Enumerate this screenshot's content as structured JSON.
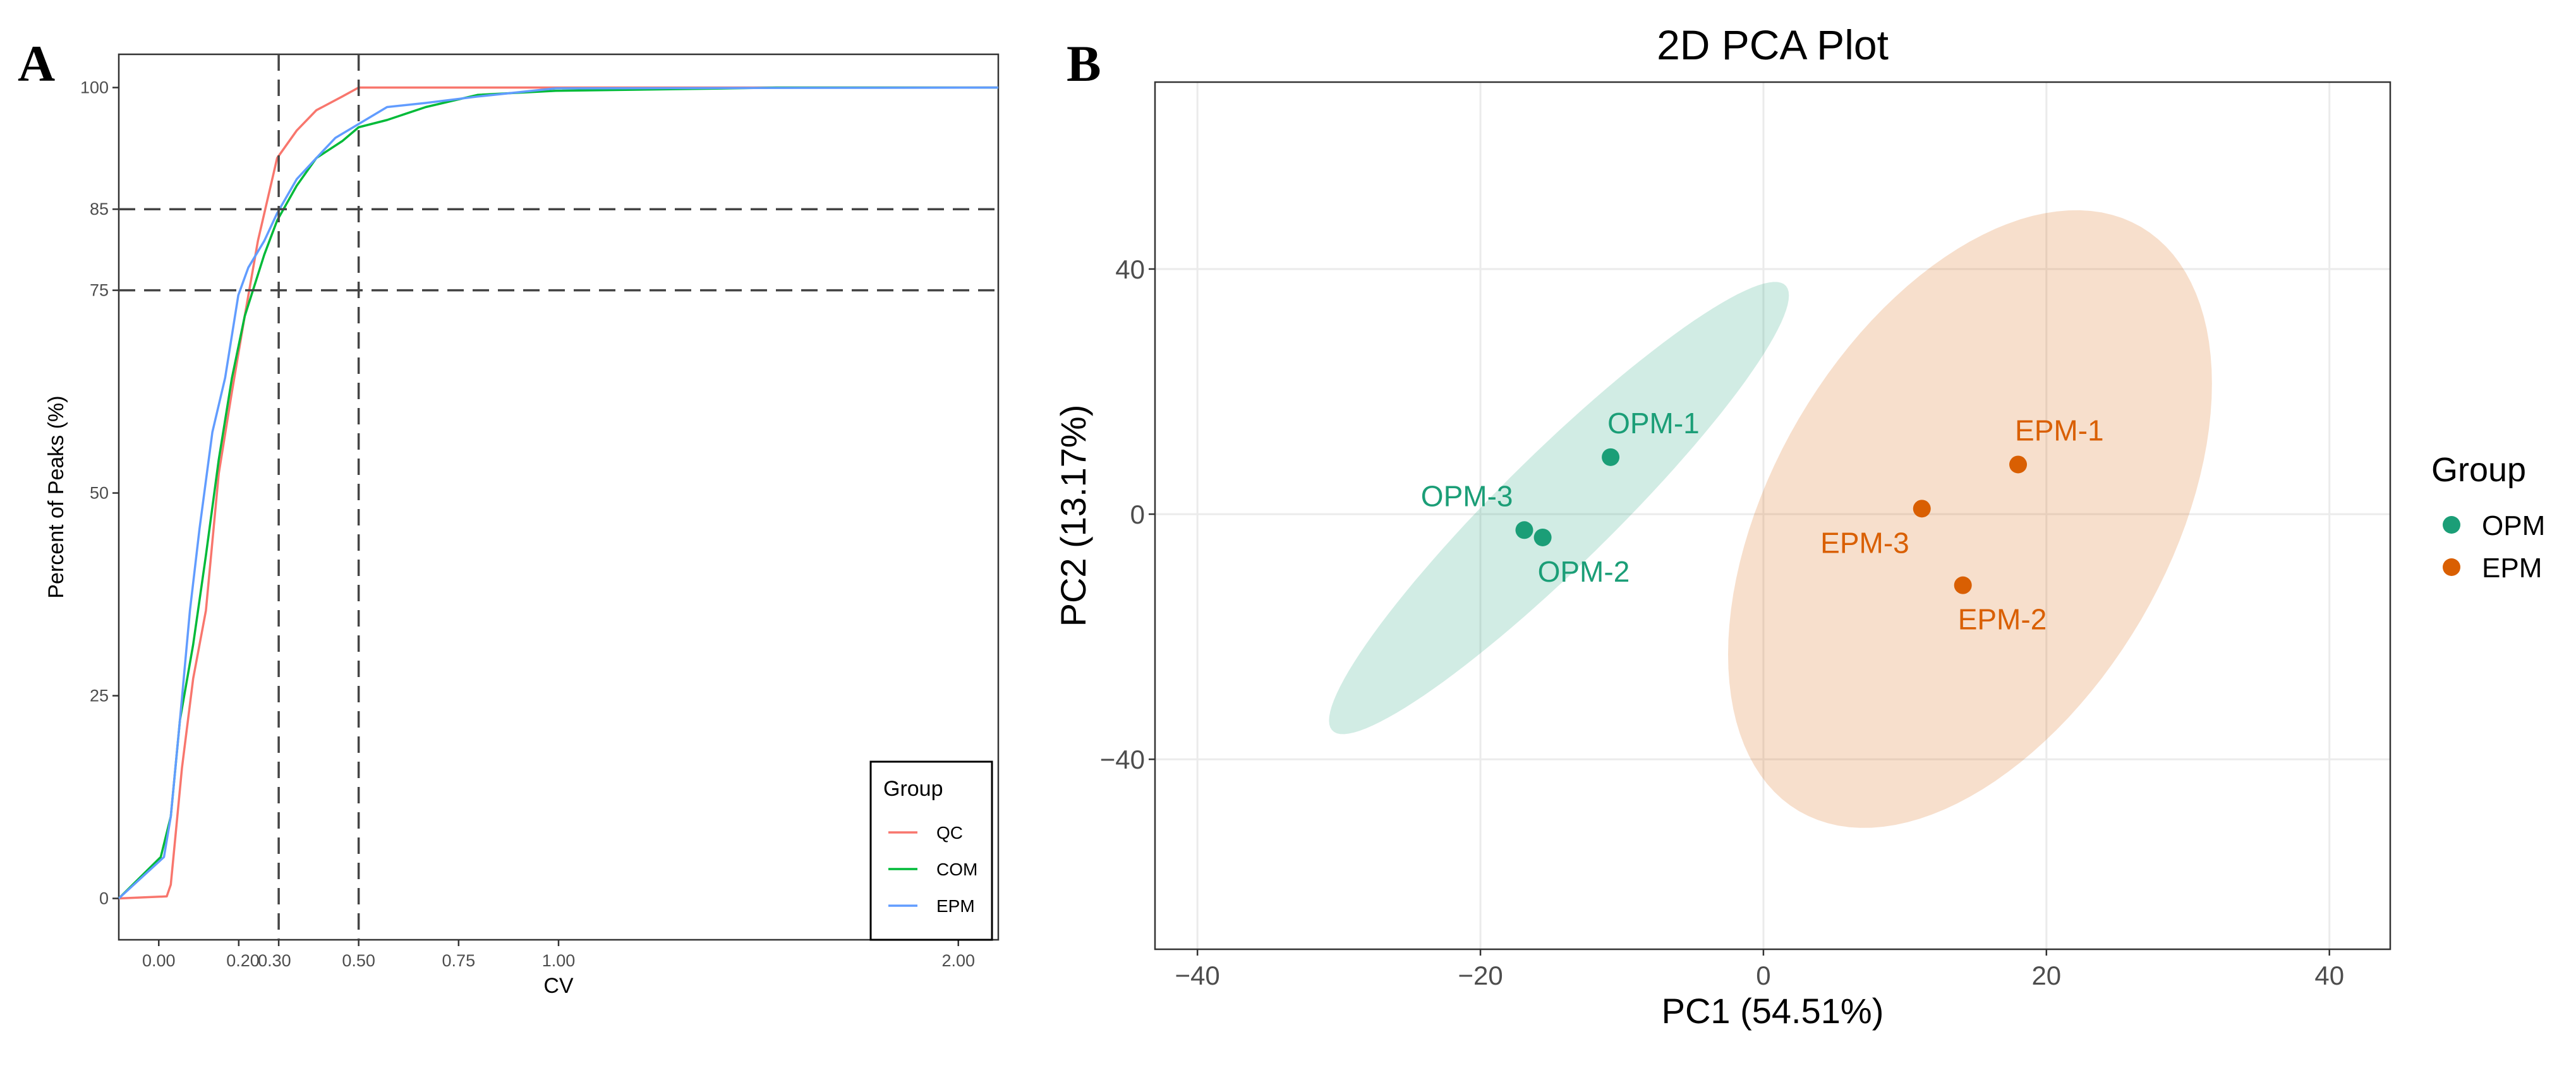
{
  "chart_data": [
    {
      "type": "line",
      "panel_label": "A",
      "xlabel": "CV",
      "ylabel": "Percent of Peaks (%)",
      "xlim": [
        -0.1,
        2.1
      ],
      "ylim": [
        -5.1,
        104.1
      ],
      "xticks": [
        0,
        0.2,
        0.3,
        0.5,
        0.75,
        1.0,
        2.0
      ],
      "xtick_labels": [
        "0.00",
        "0.20",
        "0.30",
        "0.50",
        "0.75",
        "1.00",
        "2.00"
      ],
      "yticks": [
        0,
        25,
        50,
        75,
        85,
        100
      ],
      "ytick_labels": [
        "0",
        "25",
        "50",
        "75",
        "85",
        "100"
      ],
      "reference_lines": {
        "vertical": [
          0.3,
          0.5
        ],
        "horizontal": [
          75,
          85
        ]
      },
      "grid": false,
      "legend": {
        "title": "Group",
        "placement": "bottom-right"
      },
      "series": [
        {
          "name": "QC",
          "color": "#F8766D",
          "x": [
            -0.1,
            0.02,
            0.03,
            0.04,
            0.058,
            0.086,
            0.118,
            0.15,
            0.183,
            0.215,
            0.248,
            0.272,
            0.296,
            0.345,
            0.394,
            0.459,
            0.5,
            2.1
          ],
          "y": [
            0,
            0.25,
            1.7,
            6.8,
            16.1,
            27.1,
            35.5,
            52.4,
            62.5,
            71.8,
            81.1,
            86.2,
            91.3,
            94.7,
            97.2,
            98.9,
            100,
            100
          ]
        },
        {
          "name": "COM",
          "color": "#00BA38",
          "x": [
            -0.1,
            0.005,
            0.03,
            0.053,
            0.086,
            0.118,
            0.15,
            0.183,
            0.215,
            0.264,
            0.296,
            0.345,
            0.394,
            0.459,
            0.5,
            0.571,
            0.668,
            0.798,
            0.993,
            1.43,
            1.545,
            2.1
          ],
          "y": [
            0,
            5.1,
            10.1,
            22,
            31.3,
            42.3,
            54.1,
            64.2,
            71.8,
            79.4,
            83.6,
            87.9,
            91.3,
            93.4,
            95.1,
            96,
            97.6,
            99.1,
            99.6,
            99.9,
            100,
            100
          ]
        },
        {
          "name": "EPM",
          "color": "#619CFF",
          "x": [
            -0.1,
            0.013,
            0.03,
            0.053,
            0.078,
            0.102,
            0.134,
            0.166,
            0.199,
            0.224,
            0.264,
            0.296,
            0.345,
            0.394,
            0.442,
            0.5,
            0.571,
            0.668,
            0.798,
            0.993,
            2.1
          ],
          "y": [
            0,
            5.1,
            10.1,
            22,
            35.5,
            45.6,
            57.5,
            64.2,
            74.4,
            77.8,
            81.1,
            84.5,
            88.7,
            91.3,
            93.8,
            95.5,
            97.6,
            98.1,
            98.9,
            99.9,
            100
          ]
        }
      ]
    },
    {
      "type": "scatter",
      "panel_label": "B",
      "title": "2D PCA Plot",
      "xlabel": "PC1 (54.51%)",
      "ylabel": "PC2 (13.17%)",
      "xlim": [
        -43,
        44.3
      ],
      "ylim": [
        -71,
        70.5
      ],
      "xticks": [
        -40,
        -20,
        0,
        20,
        40
      ],
      "xtick_labels": [
        "−40",
        "−20",
        "0",
        "20",
        "40"
      ],
      "yticks": [
        -40,
        0,
        40
      ],
      "ytick_labels": [
        "−40",
        "0",
        "40"
      ],
      "grid": true,
      "legend": {
        "title": "Group",
        "placement": "right"
      },
      "groups": [
        {
          "name": "OPM",
          "color": "#1B9E77",
          "ellipse": {
            "cx": -14.45,
            "cy": 1.0,
            "rx": 16.25,
            "ry": 36.9,
            "phase_deg": 20
          },
          "points": [
            {
              "label": "OPM-1",
              "x": -10.8,
              "y": 9.3,
              "label_pos": "above-right"
            },
            {
              "label": "OPM-2",
              "x": -15.6,
              "y": -3.8,
              "label_pos": "below-right"
            },
            {
              "label": "OPM-3",
              "x": -16.9,
              "y": -2.6,
              "label_pos": "above-left"
            }
          ]
        },
        {
          "name": "EPM",
          "color": "#D95F02",
          "ellipse": {
            "cx": 14.6,
            "cy": -0.8,
            "rx": 17.1,
            "ry": 50.4,
            "phase_deg": 64
          },
          "points": [
            {
              "label": "EPM-1",
              "x": 18.0,
              "y": 8.1,
              "label_pos": "above-right"
            },
            {
              "label": "EPM-2",
              "x": 14.1,
              "y": -11.6,
              "label_pos": "below-right"
            },
            {
              "label": "EPM-3",
              "x": 11.2,
              "y": 0.9,
              "label_pos": "below-left"
            }
          ]
        }
      ]
    }
  ]
}
